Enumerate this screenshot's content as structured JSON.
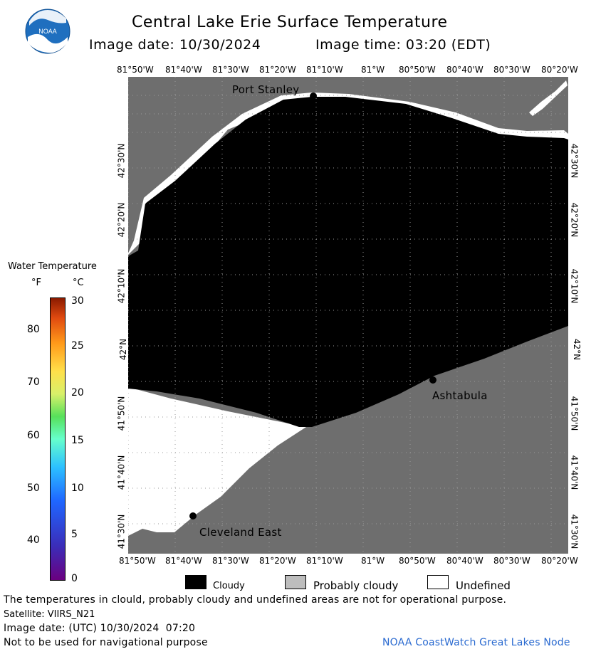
{
  "header": {
    "title": "Central Lake Erie Surface Temperature",
    "image_date": "Image date: 10/30/2024",
    "image_time": "Image time: 03:20 (EDT)"
  },
  "logo": {
    "text": "NOAA"
  },
  "map": {
    "lon_labels": [
      "81°50'W",
      "81°40'W",
      "81°30'W",
      "81°20'W",
      "81°10'W",
      "81°W",
      "80°50'W",
      "80°40'W",
      "80°30'W",
      "80°20'W"
    ],
    "lat_labels_top_to_bottom": [
      "42°30'N",
      "42°20'N",
      "42°10'N",
      "42°N",
      "41°50'N",
      "41°40'N",
      "41°30'N"
    ],
    "places": {
      "port_stanley": "Port Stanley",
      "ashtabula": "Ashtabula",
      "cleveland_east": "Cleveland East"
    },
    "colors": {
      "land": "#6e6e6e",
      "cloudy": "#000000",
      "undefined": "#ffffff",
      "grid": "#9a9a9a"
    }
  },
  "colorbar": {
    "title": "Water Temperature",
    "unit_f": "°F",
    "unit_c": "°C",
    "f_ticks": [
      "80",
      "70",
      "60",
      "50",
      "40"
    ],
    "c_ticks": [
      "30",
      "25",
      "20",
      "15",
      "10",
      "5",
      "0"
    ]
  },
  "legend": {
    "cloudy": "Cloudy",
    "probably_cloudy": "Probably cloudy",
    "undefined": "Undefined",
    "colors": {
      "cloudy": "#000000",
      "probably_cloudy": "#bdbdbd",
      "undefined": "#ffffff"
    }
  },
  "footer": {
    "disclaimer": "The temperatures in clould, probably cloudy and undefined areas are not for operational purpose.",
    "satellite": "Satellite: VIIRS_N21",
    "utc_date": "Image date: (UTC) 10/30/2024  07:20",
    "nav_warning": "Not to be used for navigational purpose",
    "credit": "NOAA CoastWatch Great Lakes Node"
  }
}
